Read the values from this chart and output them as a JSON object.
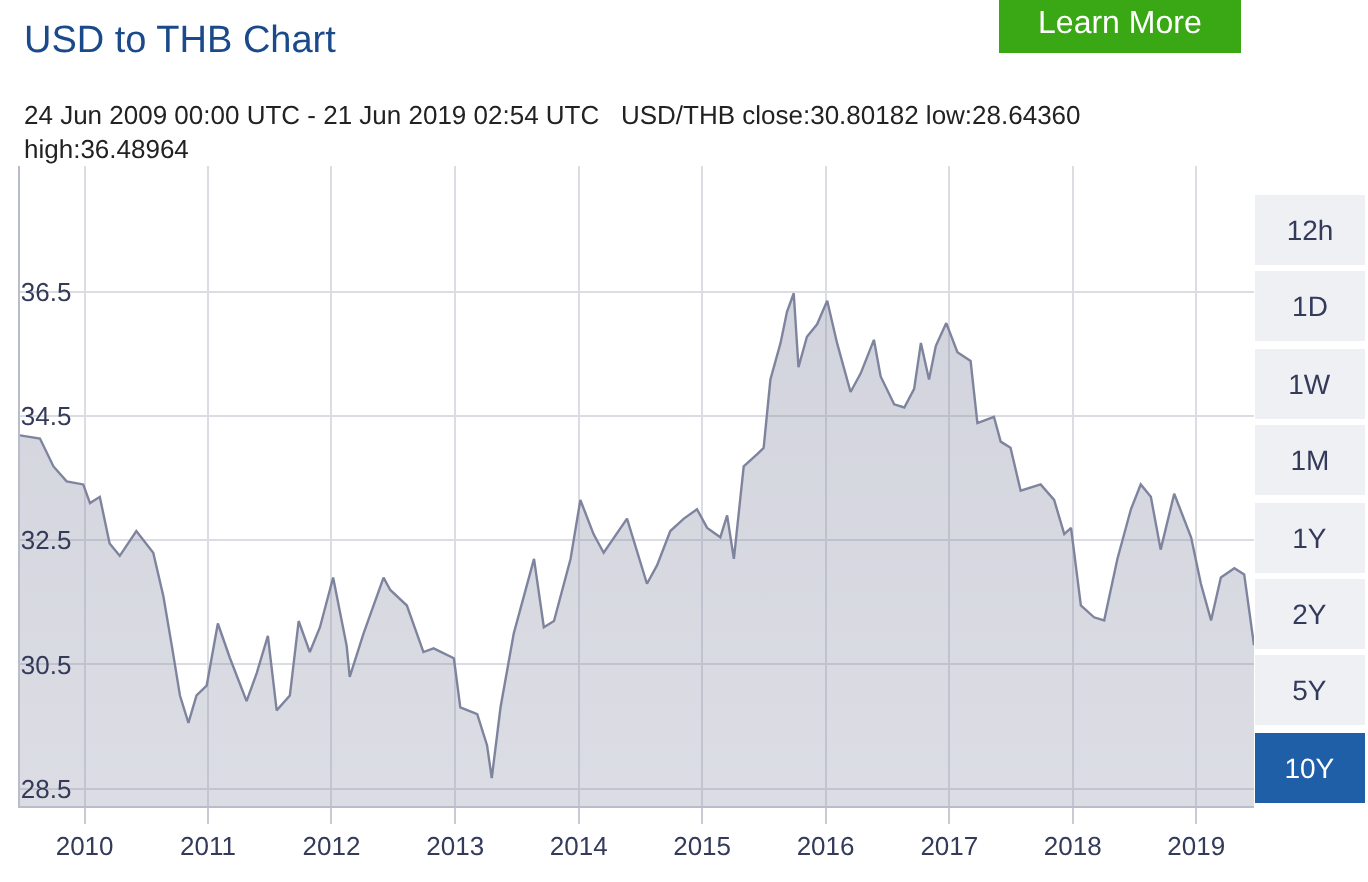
{
  "chart_data": {
    "type": "area",
    "title": "USD to THB Chart",
    "subtitle": "24 Jun 2009 00:00 UTC - 21 Jun 2019 02:54 UTC   USD/THB close:30.80182 low:28.64360 high:36.48964",
    "annotations": [
      "Learn More",
      "12h",
      "1D",
      "1W",
      "1M",
      "1Y",
      "2Y",
      "5Y",
      "10Y"
    ],
    "x": [
      "2009-06-24",
      "2009-08-22",
      "2009-10-01",
      "2009-11-09",
      "2009-12-28",
      "2010-01-17",
      "2010-02-15",
      "2010-03-16",
      "2010-04-15",
      "2010-06-03",
      "2010-07-23",
      "2010-08-22",
      "2010-09-16",
      "2010-10-10",
      "2010-11-04",
      "2010-11-28",
      "2010-12-28",
      "2011-01-30",
      "2011-03-07",
      "2011-04-25",
      "2011-05-25",
      "2011-06-27",
      "2011-07-23",
      "2011-08-31",
      "2011-09-26",
      "2011-10-29",
      "2011-11-28",
      "2012-01-06",
      "2012-02-15",
      "2012-02-24",
      "2012-04-05",
      "2012-06-03",
      "2012-06-23",
      "2012-08-11",
      "2012-09-29",
      "2012-10-29",
      "2012-12-28",
      "2013-01-16",
      "2013-03-07",
      "2013-04-05",
      "2013-04-19",
      "2013-05-15",
      "2013-06-23",
      "2013-07-13",
      "2013-08-22",
      "2013-09-20",
      "2013-10-20",
      "2013-12-08",
      "2014-01-06",
      "2014-02-14",
      "2014-03-16",
      "2014-05-24",
      "2014-07-22",
      "2014-08-21",
      "2014-09-29",
      "2014-11-08",
      "2014-12-17",
      "2015-01-16",
      "2015-02-24",
      "2015-03-16",
      "2015-04-05",
      "2015-05-04",
      "2015-06-13",
      "2015-07-02",
      "2015-07-22",
      "2015-08-21",
      "2015-09-09",
      "2015-09-29",
      "2015-10-13",
      "2015-11-07",
      "2015-12-07",
      "2016-01-06",
      "2016-02-04",
      "2016-03-15",
      "2016-04-14",
      "2016-05-23",
      "2016-06-12",
      "2016-07-22",
      "2016-08-21",
      "2016-09-19",
      "2016-10-09",
      "2016-11-02",
      "2016-11-22",
      "2016-12-23",
      "2017-01-25",
      "2017-03-05",
      "2017-03-25",
      "2017-05-13",
      "2017-06-02",
      "2017-07-01",
      "2017-07-31",
      "2017-09-28",
      "2017-11-07",
      "2017-12-07",
      "2017-12-27",
      "2018-01-25",
      "2018-03-05",
      "2018-04-04",
      "2018-05-13",
      "2018-06-22",
      "2018-07-21",
      "2018-08-20",
      "2018-09-18",
      "2018-10-28",
      "2018-12-17",
      "2019-01-15",
      "2019-02-14",
      "2019-03-15",
      "2019-04-24",
      "2019-05-23",
      "2019-06-21"
    ],
    "series": [
      {
        "color": "#7f849e",
        "values": [
          34.19,
          34.14,
          33.69,
          33.45,
          33.4,
          33.1,
          33.2,
          32.45,
          32.25,
          32.65,
          32.3,
          31.6,
          30.8,
          30.0,
          29.56,
          30.0,
          30.16,
          31.16,
          30.6,
          29.91,
          30.36,
          30.96,
          29.76,
          30.0,
          31.2,
          30.7,
          31.1,
          31.9,
          30.8,
          30.3,
          31.0,
          31.9,
          31.7,
          31.45,
          30.7,
          30.76,
          30.6,
          29.81,
          29.7,
          29.2,
          28.67,
          29.81,
          31.0,
          31.4,
          32.2,
          31.1,
          31.2,
          32.2,
          33.15,
          32.6,
          32.3,
          32.85,
          31.8,
          32.1,
          32.65,
          32.85,
          33.0,
          32.7,
          32.55,
          32.9,
          32.2,
          33.69,
          33.89,
          33.99,
          35.09,
          35.68,
          36.18,
          36.48,
          35.29,
          35.78,
          35.98,
          36.36,
          35.68,
          34.89,
          35.19,
          35.73,
          35.14,
          34.69,
          34.64,
          34.94,
          35.68,
          35.09,
          35.63,
          36.0,
          35.53,
          35.39,
          34.39,
          34.49,
          34.09,
          33.99,
          33.3,
          33.4,
          33.15,
          32.6,
          32.7,
          31.45,
          31.26,
          31.21,
          32.2,
          33.0,
          33.4,
          33.2,
          32.35,
          33.25,
          32.55,
          31.8,
          31.21,
          31.9,
          32.05,
          31.95,
          30.81
        ]
      }
    ],
    "xlim": [
      "2009-06-24",
      "2019-06-21"
    ],
    "xticks": [
      {
        "value": "2010-01-01",
        "label": "2010"
      },
      {
        "value": "2011-01-01",
        "label": "2011"
      },
      {
        "value": "2012-01-01",
        "label": "2012"
      },
      {
        "value": "2013-01-01",
        "label": "2013"
      },
      {
        "value": "2014-01-01",
        "label": "2014"
      },
      {
        "value": "2015-01-01",
        "label": "2015"
      },
      {
        "value": "2016-01-01",
        "label": "2016"
      },
      {
        "value": "2017-01-01",
        "label": "2017"
      },
      {
        "value": "2018-01-01",
        "label": "2018"
      },
      {
        "value": "2019-01-01",
        "label": "2019"
      }
    ],
    "ylim": [
      28.22,
      38.53
    ],
    "yticks": [
      28.5,
      30.5,
      32.5,
      34.5,
      36.5
    ],
    "grid": true,
    "legend": false
  }
}
